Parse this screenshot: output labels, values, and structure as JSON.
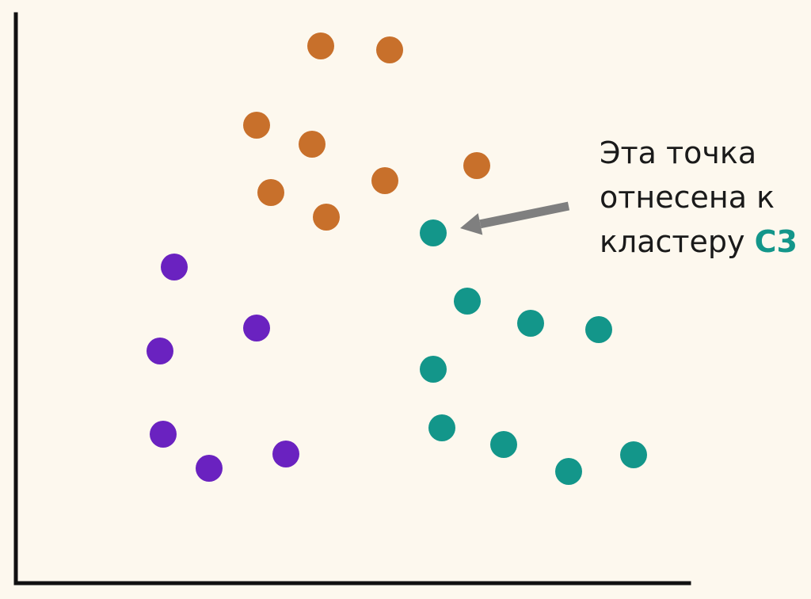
{
  "chart_data": {
    "type": "scatter",
    "title": "",
    "xlabel": "",
    "ylabel": "",
    "grid": false,
    "xlim": [
      0,
      850
    ],
    "ylim": [
      0,
      710
    ],
    "series": [
      {
        "color": "#c8702b",
        "points": [
          [
            385,
            678
          ],
          [
            472,
            673
          ],
          [
            304,
            578
          ],
          [
            374,
            554
          ],
          [
            582,
            527
          ],
          [
            322,
            493
          ],
          [
            466,
            508
          ],
          [
            392,
            462
          ]
        ]
      },
      {
        "color": "#6a22c0",
        "points": [
          [
            200,
            399
          ],
          [
            304,
            322
          ],
          [
            182,
            293
          ],
          [
            186,
            188
          ],
          [
            244,
            145
          ],
          [
            341,
            163
          ]
        ]
      },
      {
        "color": "#13968a",
        "points": [
          [
            527,
            442
          ],
          [
            570,
            356
          ],
          [
            650,
            328
          ],
          [
            736,
            320
          ],
          [
            527,
            270
          ],
          [
            538,
            196
          ],
          [
            616,
            175
          ],
          [
            698,
            141
          ],
          [
            780,
            162
          ]
        ]
      }
    ],
    "annotation": {
      "lines": [
        "Эта точка",
        "отнесена к",
        "кластеру "
      ],
      "highlight": "C3",
      "highlight_color": "#13968a",
      "arrow_color": "#7f7f7f",
      "target_point": [
        527,
        442
      ]
    },
    "axis_color": "#111111"
  }
}
